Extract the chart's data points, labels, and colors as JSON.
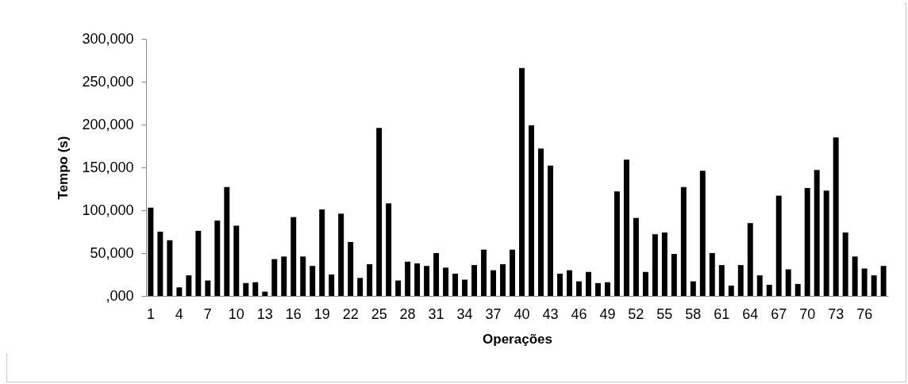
{
  "chart_data": {
    "type": "bar",
    "xlabel": "Operações",
    "ylabel": "Tempo (s)",
    "categories": [
      "1",
      null,
      null,
      "4",
      null,
      null,
      "7",
      null,
      null,
      "10",
      null,
      null,
      "13",
      null,
      null,
      "16",
      null,
      null,
      "19",
      null,
      null,
      "22",
      null,
      null,
      "25",
      null,
      null,
      "28",
      null,
      null,
      "31",
      null,
      null,
      "34",
      null,
      null,
      "37",
      null,
      null,
      "40",
      null,
      null,
      "43",
      null,
      null,
      "46",
      null,
      null,
      "49",
      null,
      null,
      "52",
      null,
      null,
      "55",
      null,
      null,
      "58",
      null,
      null,
      "61",
      null,
      null,
      "64",
      null,
      null,
      "67",
      null,
      null,
      "70",
      null,
      null,
      "73",
      null,
      null,
      "76",
      null,
      null
    ],
    "values": [
      103000,
      75000,
      65000,
      10000,
      24000,
      76000,
      18000,
      88000,
      127000,
      82000,
      15000,
      16000,
      5000,
      43000,
      46000,
      92000,
      46000,
      35000,
      101000,
      25000,
      96000,
      63000,
      21000,
      37000,
      196000,
      108000,
      18000,
      40000,
      38000,
      35000,
      50000,
      33000,
      26000,
      19000,
      36000,
      54000,
      30000,
      37000,
      54000,
      266000,
      199000,
      172000,
      152000,
      26000,
      30000,
      17000,
      28000,
      15000,
      16000,
      122000,
      159000,
      91000,
      28000,
      72000,
      74000,
      49000,
      127000,
      17000,
      146000,
      50000,
      36000,
      12000,
      36000,
      85000,
      24000,
      13000,
      117000,
      31000,
      14000,
      126000,
      147000,
      123000,
      185000,
      74000,
      46000,
      32000,
      24000,
      35000
    ],
    "color": "#000000",
    "ylim": [
      0,
      300000
    ],
    "yticks": [
      {
        "value": 0,
        "label": ",000"
      },
      {
        "value": 50000,
        "label": "50,000"
      },
      {
        "value": 100000,
        "label": "100,000"
      },
      {
        "value": 150000,
        "label": "150,000"
      },
      {
        "value": 200000,
        "label": "200,000"
      },
      {
        "value": 250000,
        "label": "250,000"
      },
      {
        "value": 300000,
        "label": "300,000"
      }
    ],
    "grid": false,
    "legend": false
  }
}
